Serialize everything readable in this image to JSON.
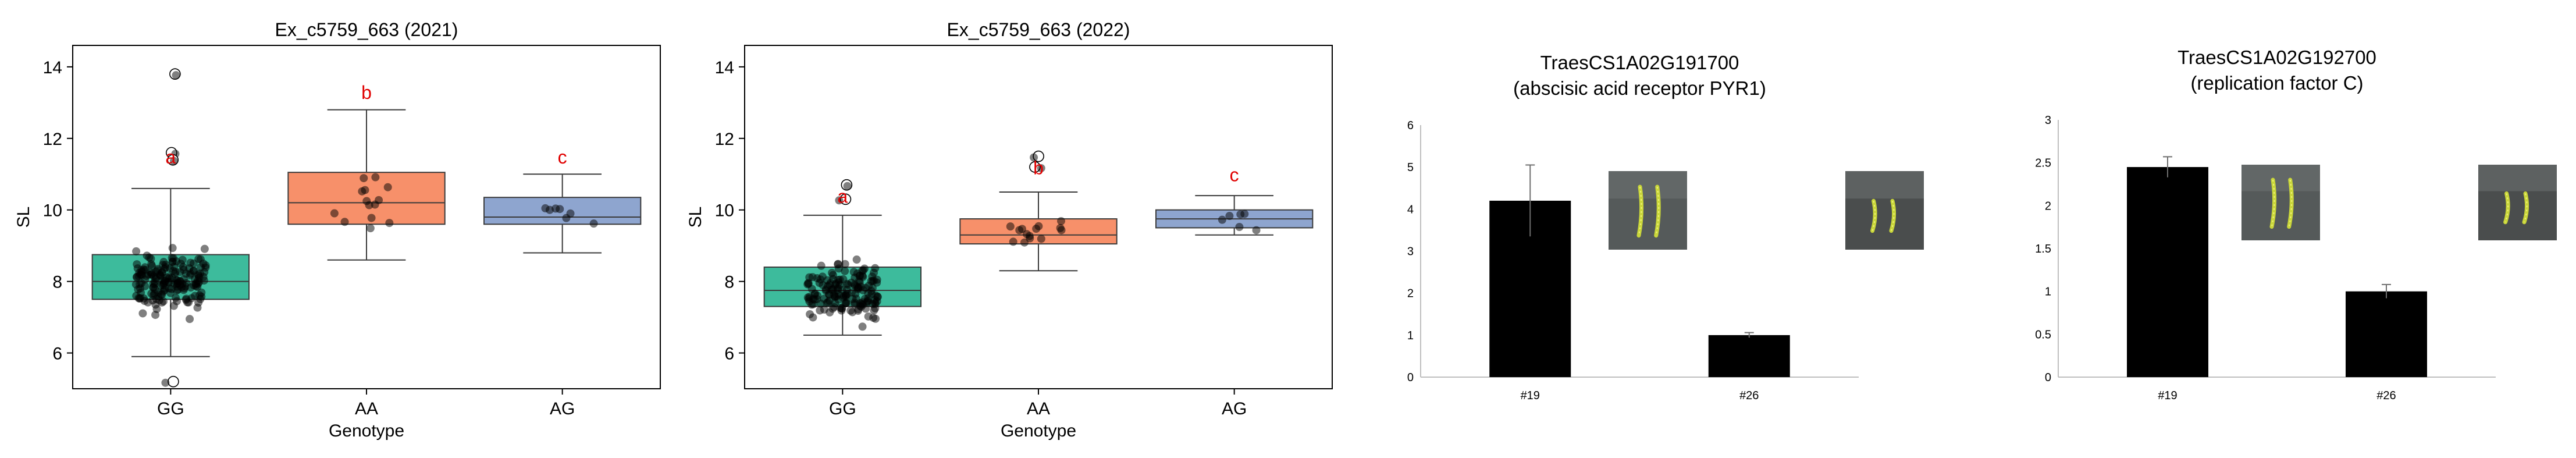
{
  "chart_data": [
    {
      "type": "box",
      "title": "Ex_c5759_663 (2021)",
      "xlabel": "Genotype",
      "ylabel": "SL",
      "ylim": [
        5,
        14.6
      ],
      "yticks": [
        6,
        8,
        10,
        12,
        14
      ],
      "categories": [
        "GG",
        "AA",
        "AG"
      ],
      "colors": [
        "#3dbb9c",
        "#f7906a",
        "#8ea5cf"
      ],
      "letters": [
        "a",
        "b",
        "c"
      ],
      "boxes": [
        {
          "q1": 7.5,
          "median": 8.0,
          "q3": 8.75,
          "whisker_low": 5.9,
          "whisker_high": 10.6
        },
        {
          "q1": 9.6,
          "median": 10.2,
          "q3": 11.05,
          "whisker_low": 8.6,
          "whisker_high": 12.8
        },
        {
          "q1": 9.6,
          "median": 9.8,
          "q3": 10.35,
          "whisker_low": 8.8,
          "whisker_high": 11.0
        }
      ],
      "outliers": [
        [
          13.8,
          11.6,
          11.4,
          5.2
        ],
        [],
        []
      ],
      "points_summary": [
        {
          "n": 180,
          "min": 5.2,
          "max": 13.8
        },
        {
          "n": 14,
          "min": 8.6,
          "max": 12.8
        },
        {
          "n": 7,
          "min": 8.8,
          "max": 11.0
        }
      ]
    },
    {
      "type": "box",
      "title": "Ex_c5759_663 (2022)",
      "xlabel": "Genotype",
      "ylabel": "SL",
      "ylim": [
        5,
        14.6
      ],
      "yticks": [
        6,
        8,
        10,
        12,
        14
      ],
      "categories": [
        "GG",
        "AA",
        "AG"
      ],
      "colors": [
        "#3dbb9c",
        "#f7906a",
        "#8ea5cf"
      ],
      "letters": [
        "a",
        "b",
        "c"
      ],
      "boxes": [
        {
          "q1": 7.3,
          "median": 7.75,
          "q3": 8.4,
          "whisker_low": 6.5,
          "whisker_high": 9.85
        },
        {
          "q1": 9.05,
          "median": 9.3,
          "q3": 9.75,
          "whisker_low": 8.3,
          "whisker_high": 10.5
        },
        {
          "q1": 9.5,
          "median": 9.75,
          "q3": 10.0,
          "whisker_low": 9.3,
          "whisker_high": 10.4
        }
      ],
      "outliers": [
        [
          10.7,
          10.3
        ],
        [
          11.5,
          11.2
        ],
        []
      ],
      "points_summary": [
        {
          "n": 160,
          "min": 6.5,
          "max": 10.7
        },
        {
          "n": 14,
          "min": 8.3,
          "max": 11.5
        },
        {
          "n": 6,
          "min": 9.3,
          "max": 10.4
        }
      ]
    },
    {
      "type": "bar",
      "title": "TraesCS1A02G191700",
      "subtitle": "(abscisic acid receptor PYR1)",
      "xlabel": "",
      "ylabel": "",
      "categories": [
        "#19",
        "#26"
      ],
      "values": [
        4.2,
        1.0
      ],
      "errors": [
        0.85,
        0.06
      ],
      "ylim": [
        0,
        6
      ],
      "yticks": [
        0,
        1,
        2,
        3,
        4,
        5,
        6
      ],
      "ytick_labels": [
        "0",
        "1",
        "2",
        "3",
        "4",
        "5",
        "6"
      ],
      "bar_color": "#000000"
    },
    {
      "type": "bar",
      "title": "TraesCS1A02G192700",
      "subtitle": "(replication factor C)",
      "xlabel": "",
      "ylabel": "",
      "categories": [
        "#19",
        "#26"
      ],
      "values": [
        2.45,
        1.0
      ],
      "errors": [
        0.12,
        0.08
      ],
      "ylim": [
        0,
        3
      ],
      "yticks": [
        0,
        0.5,
        1,
        1.5,
        2,
        2.5,
        3
      ],
      "ytick_labels": [
        "0",
        "0.5",
        "1",
        "1.5",
        "2",
        "2.5",
        "3"
      ],
      "bar_color": "#000000"
    }
  ]
}
